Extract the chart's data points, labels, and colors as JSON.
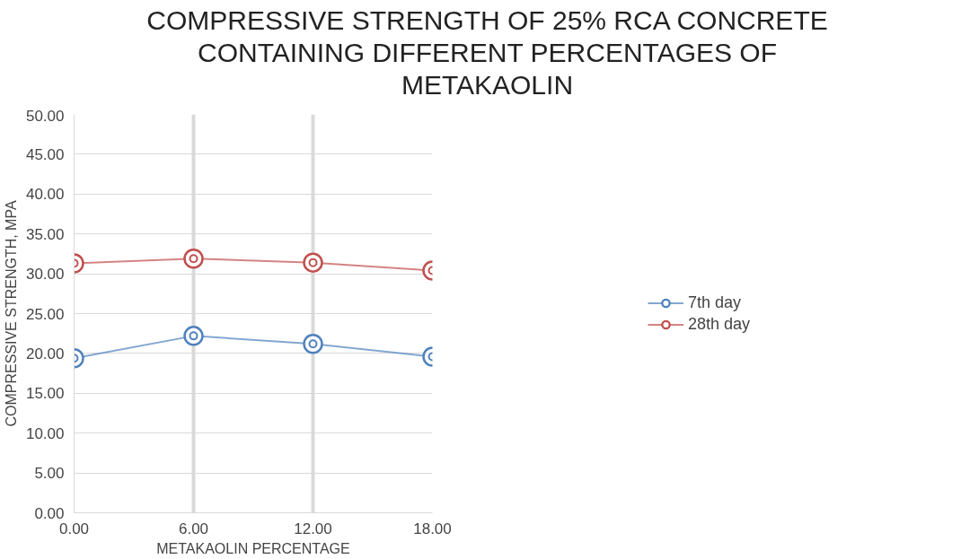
{
  "chart_data": {
    "type": "line",
    "title": "COMPRESSIVE STRENGTH OF 25% RCA CONCRETE CONTAINING DIFFERENT PERCENTAGES OF METAKAOLIN",
    "xlabel": "METAKAOLIN PERCENTAGE",
    "ylabel": "COMPRESSIVE STRENGTH, MPA",
    "x": [
      0,
      6,
      12,
      18
    ],
    "series": [
      {
        "name": "7th day",
        "color": "#4f81bd",
        "values": [
          19.4,
          22.2,
          21.2,
          19.6
        ]
      },
      {
        "name": "28th day",
        "color": "#c0504d",
        "values": [
          31.3,
          31.9,
          31.4,
          30.4
        ]
      }
    ],
    "xlim": [
      0,
      18
    ],
    "xticks": [
      {
        "value": 0,
        "label": "0.00"
      },
      {
        "value": 6,
        "label": "6.00"
      },
      {
        "value": 12,
        "label": "12.00"
      },
      {
        "value": 18,
        "label": "18.00"
      }
    ],
    "ylim": [
      0,
      50
    ],
    "yticks": [
      {
        "value": 0,
        "label": "0.00"
      },
      {
        "value": 5,
        "label": "5.00"
      },
      {
        "value": 10,
        "label": "10.00"
      },
      {
        "value": 15,
        "label": "15.00"
      },
      {
        "value": 20,
        "label": "20.00"
      },
      {
        "value": 25,
        "label": "25.00"
      },
      {
        "value": 30,
        "label": "30.00"
      },
      {
        "value": 35,
        "label": "35.00"
      },
      {
        "value": 40,
        "label": "40.00"
      },
      {
        "value": 45,
        "label": "45.00"
      },
      {
        "value": 50,
        "label": "50.00"
      }
    ],
    "grid": true,
    "legend": "right",
    "marker": "circle"
  }
}
